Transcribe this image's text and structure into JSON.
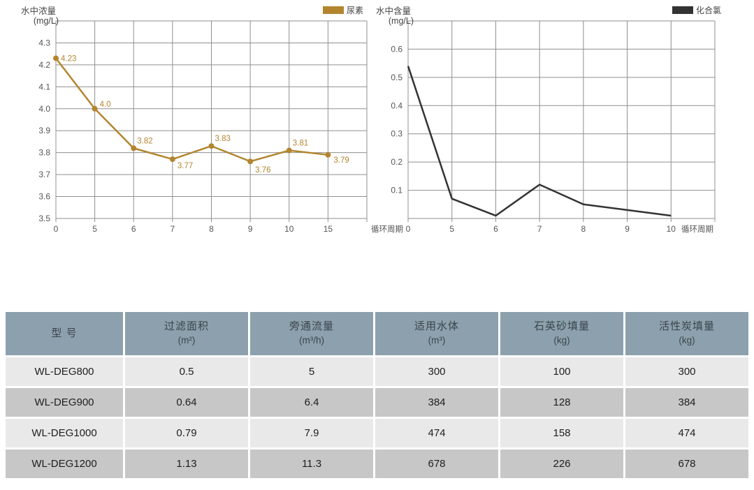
{
  "chart_data": [
    {
      "type": "line",
      "title": "水中浓量",
      "unit_label": "(mg/L)",
      "legend": "尿素",
      "line_color": "#b3852f",
      "x_axis_name": "循环周期",
      "categories": [
        "0",
        "5",
        "6",
        "7",
        "8",
        "9",
        "10",
        "15"
      ],
      "values": [
        4.23,
        4.0,
        3.82,
        3.77,
        3.83,
        3.76,
        3.81,
        3.79
      ],
      "point_labels": [
        "4.23",
        "4.0",
        "3.82",
        "3.77",
        "3.83",
        "3.76",
        "3.81",
        "3.79"
      ],
      "ylim": [
        3.5,
        4.4
      ],
      "ytick_step": 0.1,
      "ytick_labels": [
        "3.5",
        "3.6",
        "3.7",
        "3.8",
        "3.9",
        "4.0",
        "4.1",
        "4.2",
        "4.3"
      ],
      "grid": true,
      "markers": true,
      "legend_position": "top-right"
    },
    {
      "type": "line",
      "title": "水中含量",
      "unit_label": "(mg/L)",
      "legend": "化合氯",
      "line_color": "#333333",
      "x_axis_name": "循环周期",
      "categories": [
        "0",
        "5",
        "6",
        "7",
        "8",
        "9",
        "10"
      ],
      "values": [
        0.54,
        0.07,
        0.01,
        0.12,
        0.05,
        0.03,
        0.01
      ],
      "point_labels": null,
      "ylim": [
        0,
        0.7
      ],
      "ytick_step": 0.1,
      "ytick_labels": [
        "0.1",
        "0.2",
        "0.3",
        "0.4",
        "0.5",
        "0.6"
      ],
      "grid": true,
      "markers": false,
      "legend_position": "top-right"
    },
    {
      "type": "table",
      "headers": [
        {
          "label": "型 号",
          "unit": ""
        },
        {
          "label": "过滤面积",
          "unit": "(m²)"
        },
        {
          "label": "旁通流量",
          "unit": "(m³/h)"
        },
        {
          "label": "适用水体",
          "unit": "(m³)"
        },
        {
          "label": "石英砂填量",
          "unit": "(kg)"
        },
        {
          "label": "活性炭填量",
          "unit": "(kg)"
        }
      ],
      "rows": [
        [
          "WL-DEG800",
          "0.5",
          "5",
          "300",
          "100",
          "300"
        ],
        [
          "WL-DEG900",
          "0.64",
          "6.4",
          "384",
          "128",
          "384"
        ],
        [
          "WL-DEG1000",
          "0.79",
          "7.9",
          "474",
          "158",
          "474"
        ],
        [
          "WL-DEG1200",
          "1.13",
          "11.3",
          "678",
          "226",
          "678"
        ]
      ],
      "style": {
        "header_bg": "#8ca1ad",
        "header_text": "#3b444c",
        "row_bg_light": "#e9e9e9",
        "row_bg_dark": "#c7c7c7",
        "cell_text": "#1e1e1e"
      }
    }
  ],
  "colors": {
    "grid": "#8f8f8f",
    "tick_text": "#555555",
    "title_text": "#444444"
  }
}
